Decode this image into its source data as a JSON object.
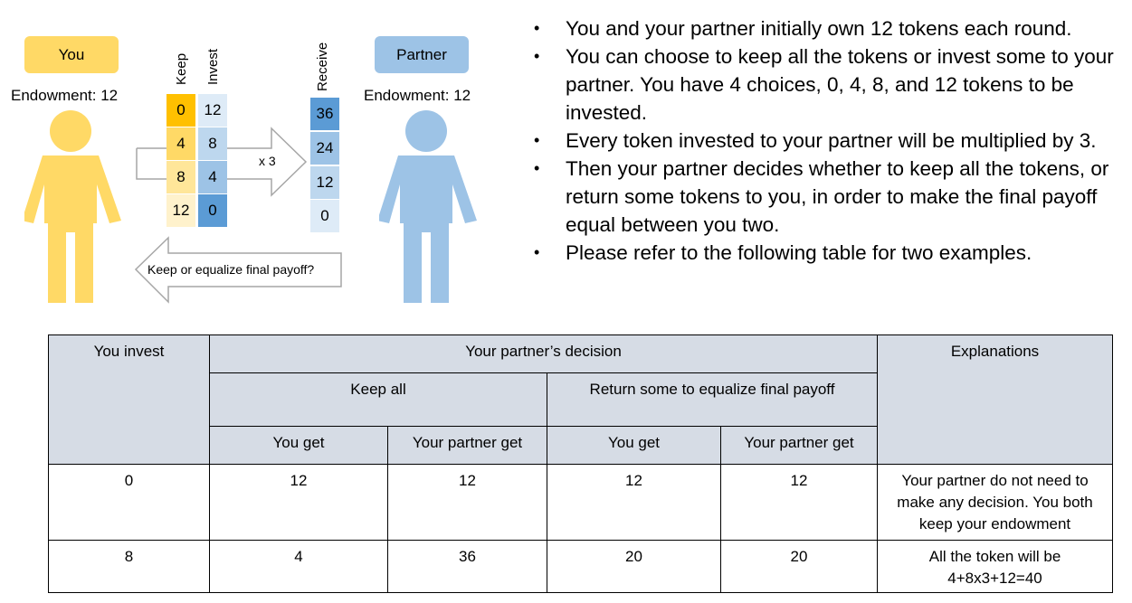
{
  "diagram": {
    "you_label": "You",
    "partner_label": "Partner",
    "you_endowment": "Endowment: 12",
    "partner_endowment": "Endowment: 12",
    "keep_header": "Keep",
    "invest_header": "Invest",
    "receive_header": "Receive",
    "keep_values": [
      "0",
      "4",
      "8",
      "12"
    ],
    "invest_values": [
      "12",
      "8",
      "4",
      "0"
    ],
    "receive_values": [
      "36",
      "24",
      "12",
      "0"
    ],
    "multiplier_label": "x 3",
    "return_arrow_label": "Keep or equalize final payoff?",
    "colors": {
      "you": "#ffd966",
      "partner": "#9dc3e6",
      "keep": [
        "#ffc000",
        "#ffd966",
        "#ffe699",
        "#fff2cc"
      ],
      "invest": [
        "#deebf7",
        "#bdd7ee",
        "#9dc3e6",
        "#5b9bd5"
      ],
      "receive": [
        "#5b9bd5",
        "#9dc3e6",
        "#bdd7ee",
        "#deebf7"
      ],
      "table_header": "#d6dce5"
    }
  },
  "bullets": [
    "You and your partner initially own 12 tokens each round.",
    "You can choose to keep all the tokens or invest some to your partner. You have 4 choices, 0, 4, 8, and 12 tokens to be invested.",
    "Every token invested to your partner will be multiplied by 3.",
    "Then your partner decides whether to keep all the tokens, or return some tokens to you, in order to make the final payoff equal between you two.",
    "Please refer to the following table for two examples."
  ],
  "table": {
    "col_you_invest": "You invest",
    "col_partner_decision": "Your partner’s decision",
    "col_explanations": "Explanations",
    "sub_keep_all": "Keep all",
    "sub_return_some": "Return some to equalize final payoff",
    "sub_you_get": "You get",
    "sub_partner_get": "Your partner get",
    "rows": [
      {
        "invest": "0",
        "keep_you": "12",
        "keep_partner": "12",
        "return_you": "12",
        "return_partner": "12",
        "explanation": "Your partner do not need to make any decision. You both keep your endowment"
      },
      {
        "invest": "8",
        "keep_you": "4",
        "keep_partner": "36",
        "return_you": "20",
        "return_partner": "20",
        "explanation": "All the token will be 4+8x3+12=40"
      }
    ]
  }
}
